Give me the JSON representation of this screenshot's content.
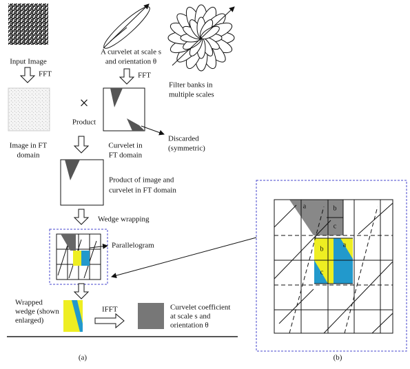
{
  "panel_a": {
    "input_image": "Input Image",
    "fft_1": "FFT",
    "curvelet_caption": [
      "A curvelet at scale s",
      "and orientation θ"
    ],
    "fft_2": "FFT",
    "filter_banks": [
      "Filter banks in",
      "multiple scales"
    ],
    "multiply_symbol": "×",
    "product": "Product",
    "image_ft": [
      "Image in FT",
      "domain"
    ],
    "curvelet_ft": [
      "Curvelet in",
      "FT domain"
    ],
    "discarded": [
      "Discarded",
      "(symmetric)"
    ],
    "product_ft": [
      "Product of image and",
      "curvelet in FT domain"
    ],
    "wedge_wrapping": "Wedge wrapping",
    "parallelogram": "Parallelogram",
    "wrapped_wedge": [
      "Wrapped",
      "wedge (shown",
      "enlarged)"
    ],
    "ifft": "IFFT",
    "coefficient": [
      "Curvelet coefficient",
      "at scale s and",
      "orientation θ"
    ],
    "caption": "(a)"
  },
  "panel_b": {
    "cell_labels": [
      "a",
      "b",
      "c"
    ],
    "caption": "(b)"
  }
}
